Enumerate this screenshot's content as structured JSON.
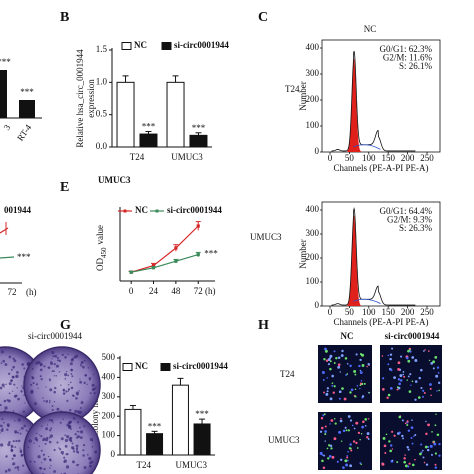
{
  "panel_a": {
    "categories": [
      "3",
      "RT-4"
    ],
    "annotations": [
      "***",
      "***"
    ]
  },
  "panel_b": {
    "type": "bar",
    "label": "B",
    "y_label": [
      "Relative hsa_circ_0001944",
      "expression"
    ],
    "categories": [
      "T24",
      "UMUC3"
    ],
    "series": [
      {
        "name": "NC",
        "color": "#ffffff",
        "values": [
          1.0,
          1.0
        ],
        "errors": [
          0.1,
          0.1
        ]
      },
      {
        "name": "si-circ0001944",
        "color": "#111111",
        "values": [
          0.2,
          0.18
        ],
        "errors": [
          0.04,
          0.04
        ]
      }
    ],
    "ylim": [
      0,
      1.5
    ],
    "yticks": [
      {
        "value": 0,
        "label": "0.0"
      },
      {
        "value": 0.5,
        "label": "0.5"
      },
      {
        "value": 1,
        "label": "1.0"
      },
      {
        "value": 1.5,
        "label": "1.5"
      }
    ],
    "annotations": [
      "***",
      "***"
    ]
  },
  "panel_c": {
    "label": "C",
    "column_title": "NC",
    "y_label": "Number",
    "x_label": "Channels (PE-A-PI PE-A)",
    "xlim": [
      0,
      250
    ],
    "xticks": [
      0,
      50,
      100,
      150,
      200,
      250
    ],
    "ylim": [
      0,
      400
    ],
    "yticks": [
      0,
      100,
      200,
      300,
      400
    ],
    "samples": [
      {
        "name": "T24",
        "stats": [
          "G0/G1: 62.3%",
          "G2/M: 11.6%",
          "S: 26.1%"
        ]
      },
      {
        "name": "UMUC3",
        "stats": [
          "G0/G1: 64.4%",
          "G2/M: 9.3%",
          "S: 26.3%"
        ]
      }
    ]
  },
  "panel_d": {
    "legend_fragment": "001944",
    "annotation": "***",
    "xtick": "72",
    "x_unit": "(h)"
  },
  "panel_e": {
    "type": "line",
    "label": "E",
    "title": "UMUC3",
    "y_label": {
      "main": "OD",
      "sub": "450",
      "rest": "value"
    },
    "x": [
      0,
      24,
      48,
      72
    ],
    "xlim": [
      -12,
      90
    ],
    "xticks": [
      0,
      24,
      48,
      72
    ],
    "x_unit": "(h)",
    "ylim": [
      0,
      3
    ],
    "series": [
      {
        "name": "NC",
        "color": "#d62728",
        "values": [
          0.4,
          0.7,
          1.5,
          2.5
        ],
        "errors": [
          0.05,
          0.1,
          0.15,
          0.2
        ]
      },
      {
        "name": "si-circ0001944",
        "color": "#3a8a5a",
        "values": [
          0.4,
          0.6,
          0.9,
          1.2
        ],
        "errors": [
          0.03,
          0.05,
          0.08,
          0.1
        ]
      }
    ],
    "annotation": "***"
  },
  "panel_f": {
    "column_title": "si-circ0001944"
  },
  "panel_g": {
    "type": "bar",
    "label": "G",
    "y_label": "Colony numbers",
    "categories": [
      "T24",
      "UMUC3"
    ],
    "series": [
      {
        "name": "NC",
        "color": "#ffffff",
        "values": [
          235,
          360
        ],
        "errors": [
          20,
          35
        ]
      },
      {
        "name": "si-circ0001944",
        "color": "#111111",
        "values": [
          110,
          160
        ],
        "errors": [
          12,
          25
        ]
      }
    ],
    "ylim": [
      0,
      500
    ],
    "yticks": [
      0,
      100,
      200,
      300,
      400,
      500
    ],
    "annotations": [
      "***",
      "***"
    ]
  },
  "panel_h": {
    "label": "H",
    "columns": [
      "NC",
      "si-circ0001944"
    ],
    "rows": [
      "T24",
      "UMUC3"
    ]
  }
}
